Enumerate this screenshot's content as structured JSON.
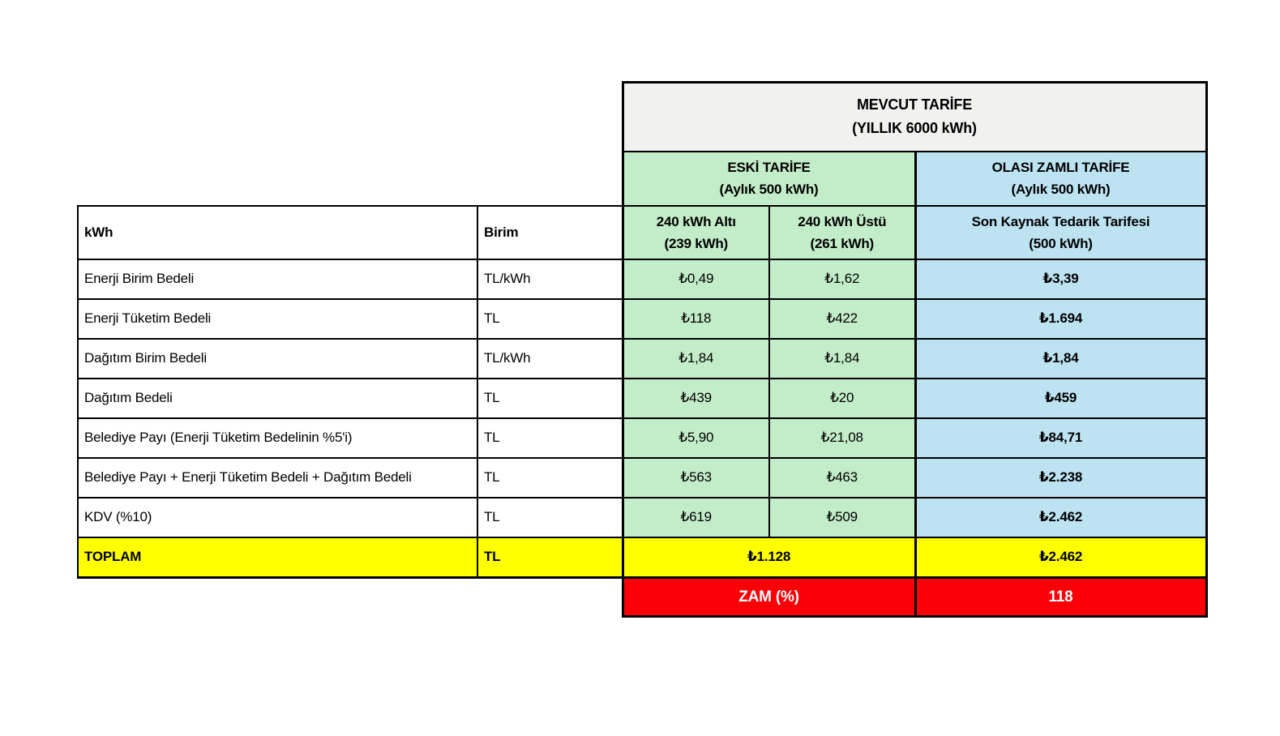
{
  "colors": {
    "grey_header": "#f1f1ef",
    "green": "#c3ecc9",
    "blue": "#bde3f2",
    "yellow": "#ffff00",
    "red": "#fb0007",
    "border": "#000000",
    "zam_text": "#ffffff"
  },
  "chart_data": {
    "type": "table",
    "title": "MEVCUT TARİFE (YILLIK 6000 kWh)",
    "mevcut_header": {
      "title": "MEVCUT TARİFE",
      "subtitle": "(YILLIK 6000 kWh)"
    },
    "eski_header": {
      "title": "ESKİ TARİFE",
      "subtitle": "(Aylık 500 kWh)"
    },
    "zamli_header": {
      "title": "OLASI ZAMLI TARİFE",
      "subtitle": "(Aylık 500 kWh)"
    },
    "col_headers": {
      "kwh": "kWh",
      "birim": "Birim",
      "under240": {
        "title": "240 kWh Altı",
        "subtitle": "(239 kWh)"
      },
      "over240": {
        "title": "240 kWh Üstü",
        "subtitle": "(261 kWh)"
      },
      "son_kaynak": {
        "title": "Son Kaynak Tedarik Tarifesi",
        "subtitle": "(500 kWh)"
      }
    },
    "rows": [
      {
        "label": "Enerji Birim Bedeli",
        "unit": "TL/kWh",
        "under240": "₺0,49",
        "over240": "₺1,62",
        "zamli": "₺3,39"
      },
      {
        "label": "Enerji Tüketim Bedeli",
        "unit": "TL",
        "under240": "₺118",
        "over240": "₺422",
        "zamli": "₺1.694"
      },
      {
        "label": "Dağıtım Birim Bedeli",
        "unit": "TL/kWh",
        "under240": "₺1,84",
        "over240": "₺1,84",
        "zamli": "₺1,84"
      },
      {
        "label": "Dağıtım Bedeli",
        "unit": "TL",
        "under240": "₺439",
        "over240": "₺20",
        "zamli": "₺459"
      },
      {
        "label": "Belediye Payı (Enerji Tüketim Bedelinin %5'i)",
        "unit": "TL",
        "under240": "₺5,90",
        "over240": "₺21,08",
        "zamli": "₺84,71"
      },
      {
        "label": "Belediye Payı + Enerji Tüketim Bedeli + Dağıtım Bedeli",
        "unit": "TL",
        "under240": "₺563",
        "over240": "₺463",
        "zamli": "₺2.238"
      },
      {
        "label": "KDV (%10)",
        "unit": "TL",
        "under240": "₺619",
        "over240": "₺509",
        "zamli": "₺2.462"
      }
    ],
    "total_row": {
      "label": "TOPLAM",
      "unit": "TL",
      "eski_total": "₺1.128",
      "zamli_total": "₺2.462"
    },
    "zam_row": {
      "label": "ZAM (%)",
      "value": "118"
    }
  }
}
